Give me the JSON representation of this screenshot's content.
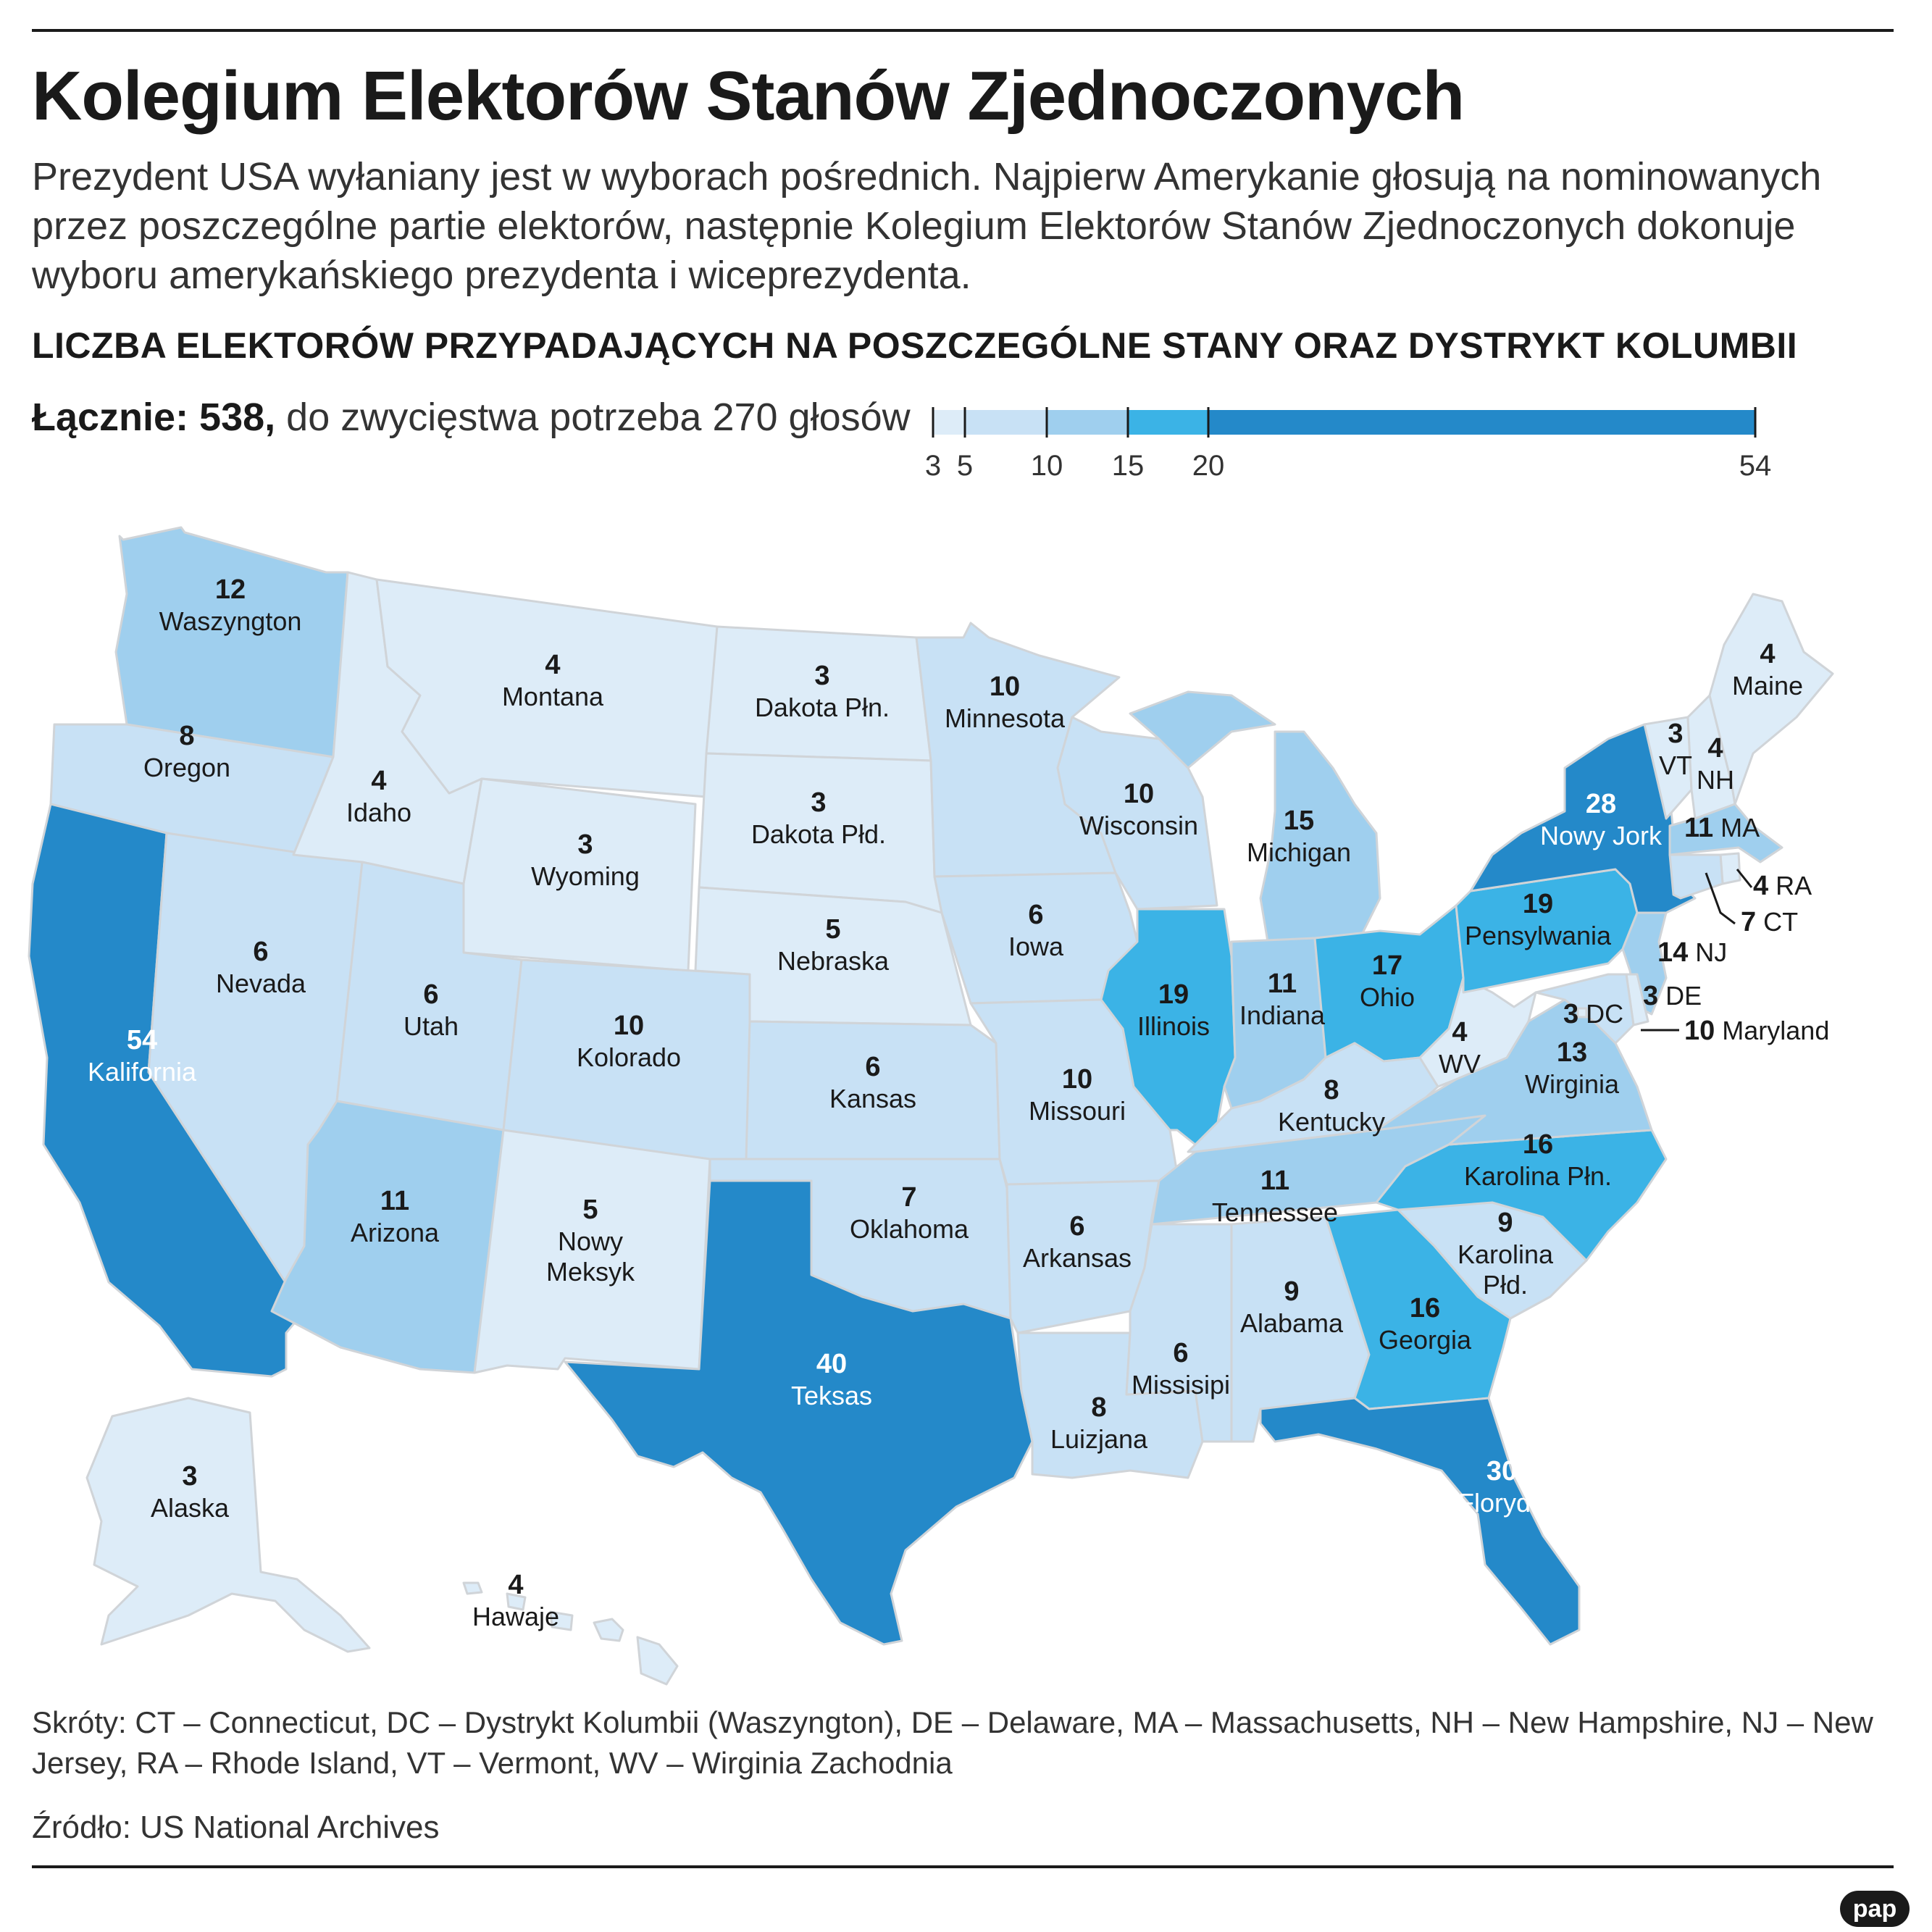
{
  "title": "Kolegium Elektorów Stanów Zjednoczonych",
  "lead": "Prezydent USA wyłaniany jest w wyborach pośrednich. Najpierw Amerykanie głosują na nominowanych przez poszczególne partie elektorów, następnie Kolegium Elektorów Stanów Zjednoczonych dokonuje wyboru amerykańskiego prezydenta i wiceprezydenta.",
  "subheading": "LICZBA ELEKTORÓW PRZYPADAJĄCYCH NA POSZCZEGÓLNE STANY ORAZ DYSTRYKT KOLUMBII",
  "total": {
    "label": "Łącznie: 538,",
    "text": " do zwycięstwa potrzeba 270 głosów"
  },
  "legend": {
    "ticks": [
      "3",
      "5",
      "10",
      "15",
      "20",
      "54"
    ],
    "bins": [
      {
        "from": 3,
        "to": 5,
        "color": "#ddecf8"
      },
      {
        "from": 5,
        "to": 10,
        "color": "#c8e1f5"
      },
      {
        "from": 10,
        "to": 15,
        "color": "#9fcfee"
      },
      {
        "from": 15,
        "to": 20,
        "color": "#3bb3e6"
      },
      {
        "from": 20,
        "to": 54,
        "color": "#2489c9"
      }
    ]
  },
  "states": [
    {
      "name": "Waszyngton",
      "electors": 12
    },
    {
      "name": "Oregon",
      "electors": 8
    },
    {
      "name": "Kalifornia",
      "electors": 54
    },
    {
      "name": "Nevada",
      "electors": 6
    },
    {
      "name": "Idaho",
      "electors": 4
    },
    {
      "name": "Montana",
      "electors": 4
    },
    {
      "name": "Wyoming",
      "electors": 3
    },
    {
      "name": "Utah",
      "electors": 6
    },
    {
      "name": "Arizona",
      "electors": 11
    },
    {
      "name": "Kolorado",
      "electors": 10
    },
    {
      "name": "Nowy Meksyk",
      "electors": 5
    },
    {
      "name": "Dakota Płn.",
      "electors": 3
    },
    {
      "name": "Dakota Płd.",
      "electors": 3
    },
    {
      "name": "Nebraska",
      "electors": 5
    },
    {
      "name": "Kansas",
      "electors": 6
    },
    {
      "name": "Oklahoma",
      "electors": 7
    },
    {
      "name": "Teksas",
      "electors": 40
    },
    {
      "name": "Minnesota",
      "electors": 10
    },
    {
      "name": "Iowa",
      "electors": 6
    },
    {
      "name": "Missouri",
      "electors": 10
    },
    {
      "name": "Arkansas",
      "electors": 6
    },
    {
      "name": "Luizjana",
      "electors": 8
    },
    {
      "name": "Wisconsin",
      "electors": 10
    },
    {
      "name": "Illinois",
      "electors": 19
    },
    {
      "name": "Michigan",
      "electors": 15
    },
    {
      "name": "Indiana",
      "electors": 11
    },
    {
      "name": "Ohio",
      "electors": 17
    },
    {
      "name": "Kentucky",
      "electors": 8
    },
    {
      "name": "Tennessee",
      "electors": 11
    },
    {
      "name": "Missisipi",
      "electors": 6
    },
    {
      "name": "Alabama",
      "electors": 9
    },
    {
      "name": "Georgia",
      "electors": 16
    },
    {
      "name": "Floryda",
      "electors": 30
    },
    {
      "name": "Karolina Płd.",
      "electors": 9
    },
    {
      "name": "Karolina Płn.",
      "electors": 16
    },
    {
      "name": "Wirginia",
      "electors": 13
    },
    {
      "name": "WV",
      "electors": 4
    },
    {
      "name": "Pensylwania",
      "electors": 19
    },
    {
      "name": "Nowy Jork",
      "electors": 28
    },
    {
      "name": "VT",
      "electors": 3
    },
    {
      "name": "NH",
      "electors": 4
    },
    {
      "name": "Maine",
      "electors": 4
    },
    {
      "name": "MA",
      "electors": 11
    },
    {
      "name": "RA",
      "electors": 4
    },
    {
      "name": "CT",
      "electors": 7
    },
    {
      "name": "NJ",
      "electors": 14
    },
    {
      "name": "DE",
      "electors": 3
    },
    {
      "name": "DC",
      "electors": 3
    },
    {
      "name": "Maryland",
      "electors": 10
    },
    {
      "name": "Alaska",
      "electors": 3
    },
    {
      "name": "Hawaje",
      "electors": 4
    }
  ],
  "abbreviations": "Skróty: CT – Connecticut, DC – Dystrykt Kolumbii (Waszyngton), DE – Delaware, MA – Massachusetts, NH – New Hampshire, NJ – New Jersey, RA – Rhode Island, VT – Vermont, WV – Wirginia Zachodnia",
  "source": "Źródło: US National Archives",
  "logo": "pap"
}
